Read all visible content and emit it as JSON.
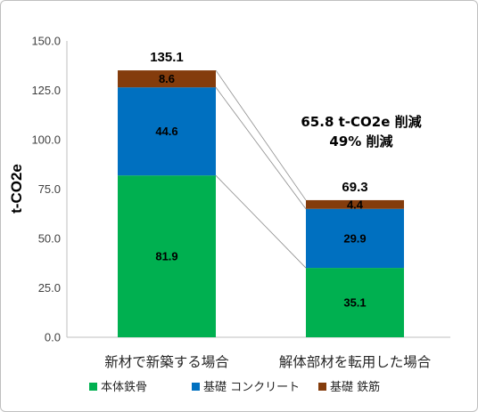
{
  "chart_data": {
    "type": "bar",
    "stacked": true,
    "ylabel": "t-CO2e",
    "ylim": [
      0,
      150
    ],
    "yticks": [
      "0.0",
      "25.0",
      "50.0",
      "75.0",
      "100.0",
      "125.0",
      "150.0"
    ],
    "categories": [
      "新材で新築する場合",
      "解体部材を転用した場合"
    ],
    "series": [
      {
        "name": "本体鉄骨",
        "color": "#00b050",
        "values": [
          81.9,
          35.1
        ],
        "labels": [
          "81.9",
          "35.1"
        ]
      },
      {
        "name": "基礎 コンクリート",
        "color": "#0070c0",
        "values": [
          44.6,
          29.9
        ],
        "labels": [
          "44.6",
          "29.9"
        ]
      },
      {
        "name": "基礎 鉄筋",
        "color": "#843c0c",
        "values": [
          8.6,
          4.4
        ],
        "labels": [
          "8.6",
          "4.4"
        ]
      }
    ],
    "totals": [
      "135.1",
      "69.3"
    ],
    "annotation": [
      "65.8 t-CO2e 削減",
      "49% 削減"
    ],
    "grid": false,
    "legend_position": "bottom",
    "connector_lines": true
  }
}
